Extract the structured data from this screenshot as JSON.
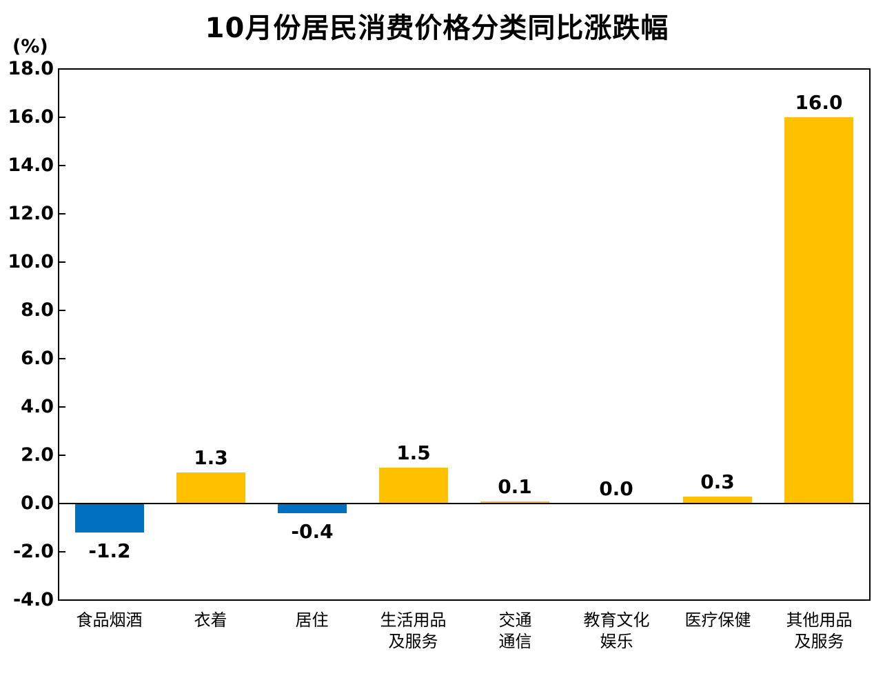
{
  "title": "10月份居民消费价格分类同比涨跌幅",
  "y_axis_unit": "(%)",
  "chart_data": {
    "type": "bar",
    "title": "10月份居民消费价格分类同比涨跌幅",
    "xlabel": "",
    "ylabel": "(%)",
    "categories": [
      "食品烟酒",
      "衣着",
      "居住",
      "生活用品\n及服务",
      "交通\n通信",
      "教育文化\n娱乐",
      "医疗保健",
      "其他用品\n及服务"
    ],
    "values": [
      -1.2,
      1.3,
      -0.4,
      1.5,
      0.1,
      0.0,
      0.3,
      16.0
    ],
    "value_labels": [
      "-1.2",
      "1.3",
      "-0.4",
      "1.5",
      "0.1",
      "0.0",
      "0.3",
      "16.0"
    ],
    "ylim": [
      -4.0,
      18.0
    ],
    "ytick_step": 2.0,
    "ytick_labels": [
      "18.0",
      "16.0",
      "14.0",
      "12.0",
      "10.0",
      "8.0",
      "6.0",
      "4.0",
      "2.0",
      "0.0",
      "-2.0",
      "-4.0"
    ],
    "grid": false,
    "legend": "none",
    "colors": {
      "positive_bar": "#FFC000",
      "negative_bar": "#0070C0",
      "axis": "#000000",
      "text": "#000000",
      "background": "#FFFFFF"
    }
  }
}
